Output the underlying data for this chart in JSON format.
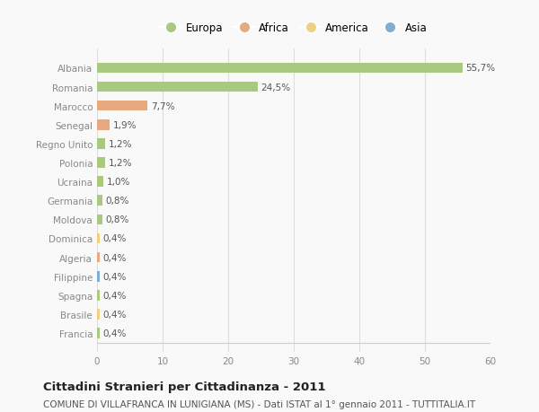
{
  "countries": [
    "Albania",
    "Romania",
    "Marocco",
    "Senegal",
    "Regno Unito",
    "Polonia",
    "Ucraina",
    "Germania",
    "Moldova",
    "Dominica",
    "Algeria",
    "Filippine",
    "Spagna",
    "Brasile",
    "Francia"
  ],
  "values": [
    55.7,
    24.5,
    7.7,
    1.9,
    1.2,
    1.2,
    1.0,
    0.8,
    0.8,
    0.4,
    0.4,
    0.4,
    0.4,
    0.4,
    0.4
  ],
  "labels": [
    "55,7%",
    "24,5%",
    "7,7%",
    "1,9%",
    "1,2%",
    "1,2%",
    "1,0%",
    "0,8%",
    "0,8%",
    "0,4%",
    "0,4%",
    "0,4%",
    "0,4%",
    "0,4%",
    "0,4%"
  ],
  "continents": [
    "Europa",
    "Europa",
    "Africa",
    "Africa",
    "Europa",
    "Europa",
    "Europa",
    "Europa",
    "Europa",
    "America",
    "Africa",
    "Asia",
    "Europa",
    "America",
    "Europa"
  ],
  "continent_colors": {
    "Europa": "#a8c97f",
    "Africa": "#e8a97e",
    "America": "#f0d080",
    "Asia": "#7eaed4"
  },
  "legend_order": [
    "Europa",
    "Africa",
    "America",
    "Asia"
  ],
  "xlim": [
    0,
    60
  ],
  "xticks": [
    0,
    10,
    20,
    30,
    40,
    50,
    60
  ],
  "title": "Cittadini Stranieri per Cittadinanza - 2011",
  "subtitle": "COMUNE DI VILLAFRANCA IN LUNIGIANA (MS) - Dati ISTAT al 1° gennaio 2011 - TUTTITALIA.IT",
  "bg_color": "#f9f9f9",
  "grid_color": "#dddddd",
  "bar_height": 0.55,
  "title_fontsize": 9.5,
  "subtitle_fontsize": 7.5,
  "label_fontsize": 7.5,
  "tick_fontsize": 7.5,
  "legend_fontsize": 8.5
}
